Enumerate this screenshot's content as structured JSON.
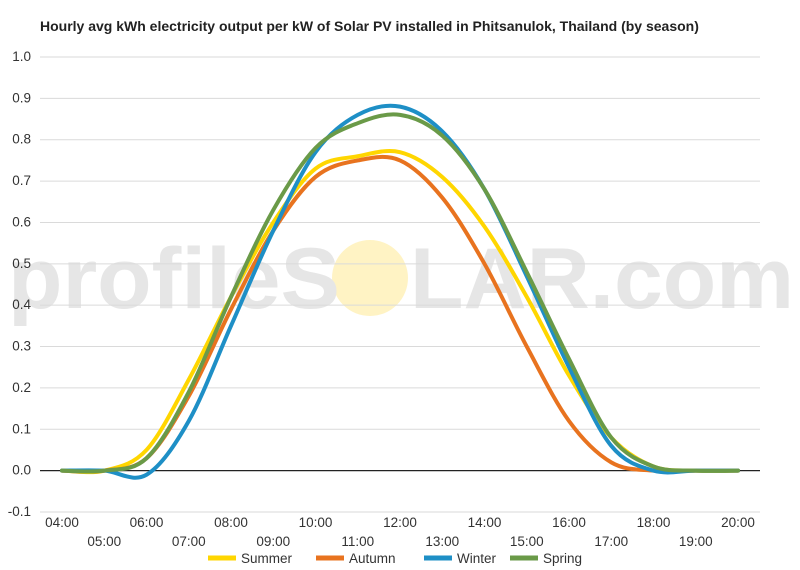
{
  "chart_data": {
    "type": "line",
    "title": "Hourly avg kWh electricity output per kW of Solar PV installed in Phitsanulok, Thailand (by season)",
    "xlabel": "",
    "ylabel": "",
    "x": [
      "04:00",
      "05:00",
      "06:00",
      "07:00",
      "08:00",
      "09:00",
      "10:00",
      "11:00",
      "12:00",
      "13:00",
      "14:00",
      "15:00",
      "16:00",
      "17:00",
      "18:00",
      "19:00",
      "20:00"
    ],
    "ylim": [
      -0.1,
      1.0
    ],
    "yticks": [
      "1.0",
      "0.9",
      "0.8",
      "0.7",
      "0.6",
      "0.5",
      "0.4",
      "0.3",
      "0.2",
      "0.1",
      "0.0",
      "-0.1"
    ],
    "grid": true,
    "legend_position": "bottom",
    "series": [
      {
        "name": "Summer",
        "color": "#FFD600",
        "values": [
          0.0,
          0.0,
          0.05,
          0.22,
          0.42,
          0.6,
          0.73,
          0.76,
          0.77,
          0.71,
          0.59,
          0.42,
          0.23,
          0.08,
          0.01,
          0.0,
          0.0
        ]
      },
      {
        "name": "Autumn",
        "color": "#E8731F",
        "values": [
          0.0,
          0.0,
          0.03,
          0.18,
          0.39,
          0.58,
          0.71,
          0.75,
          0.75,
          0.66,
          0.5,
          0.3,
          0.12,
          0.02,
          0.0,
          0.0,
          0.0
        ]
      },
      {
        "name": "Winter",
        "color": "#1E8FC6",
        "values": [
          0.0,
          0.0,
          -0.01,
          0.12,
          0.35,
          0.58,
          0.77,
          0.86,
          0.88,
          0.82,
          0.68,
          0.47,
          0.25,
          0.06,
          0.0,
          0.0,
          0.0
        ]
      },
      {
        "name": "Spring",
        "color": "#6A9A48",
        "values": [
          0.0,
          0.0,
          0.03,
          0.19,
          0.42,
          0.63,
          0.78,
          0.84,
          0.86,
          0.81,
          0.68,
          0.48,
          0.27,
          0.08,
          0.01,
          0.0,
          0.0
        ]
      }
    ]
  },
  "watermark": {
    "text_left": "profileS",
    "text_right": "LAR.com",
    "sun_color": "#FFF3C4",
    "text_color": "#E6E6E6"
  }
}
